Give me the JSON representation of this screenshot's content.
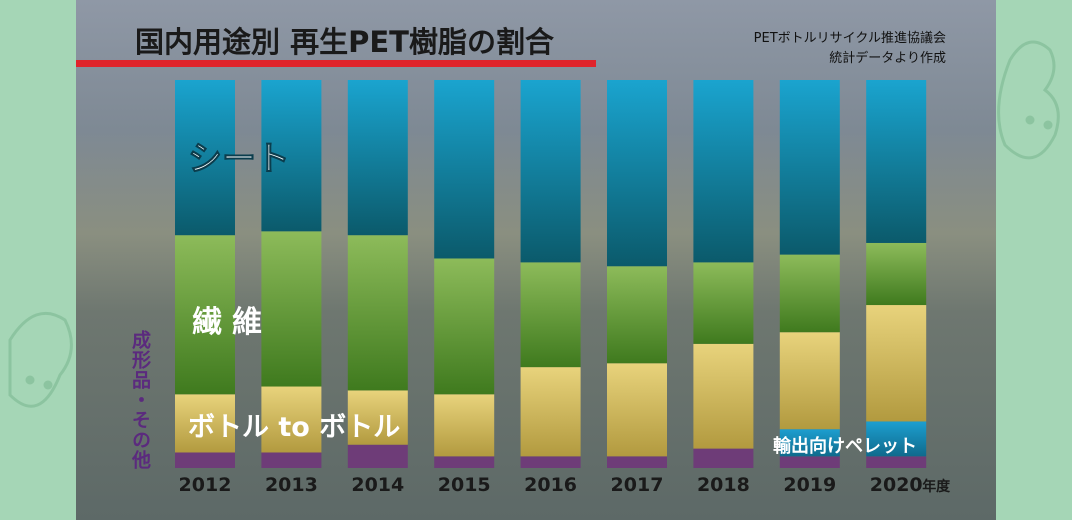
{
  "title": "国内用途別 再生PET樹脂の割合",
  "source_line1": "PETボトルリサイクル推進協議会",
  "source_line2": "統計データより作成",
  "year_suffix": "年度",
  "labels": {
    "sheet": "シート",
    "fiber": "繊維",
    "bottle": "ボトル to ボトル",
    "molded": "成形品・その他",
    "export": "輸出向けペレット"
  },
  "colors": {
    "sheet_top": "#1aa4cf",
    "sheet_bottom": "#0b5a6b",
    "fiber_top": "#8dbb5a",
    "fiber_bottom": "#3f7a1e",
    "bottle_top": "#e8d37c",
    "bottle_bottom": "#b29a3f",
    "export_top": "#1d9fd0",
    "export_bottom": "#0f6a8c",
    "other": "#6e3c78",
    "title_bar": "#e0232b"
  },
  "chart_data": {
    "type": "bar",
    "stacked": true,
    "percent": true,
    "categories": [
      "2012",
      "2013",
      "2014",
      "2015",
      "2016",
      "2017",
      "2018",
      "2019",
      "2020"
    ],
    "series": [
      {
        "name": "成形品・その他",
        "values": [
          4,
          4,
          6,
          3,
          3,
          3,
          5,
          3,
          3
        ]
      },
      {
        "name": "輸出向けペレット",
        "values": [
          0,
          0,
          0,
          0,
          0,
          0,
          0,
          7,
          9
        ]
      },
      {
        "name": "ボトル to ボトル",
        "values": [
          15,
          17,
          14,
          16,
          23,
          24,
          27,
          25,
          30
        ]
      },
      {
        "name": "繊維",
        "values": [
          41,
          40,
          40,
          35,
          27,
          25,
          21,
          20,
          16
        ]
      },
      {
        "name": "シート",
        "values": [
          40,
          39,
          40,
          46,
          47,
          48,
          47,
          45,
          42
        ]
      }
    ],
    "ylim": [
      0,
      100
    ],
    "title": "国内用途別 再生PET樹脂の割合"
  }
}
